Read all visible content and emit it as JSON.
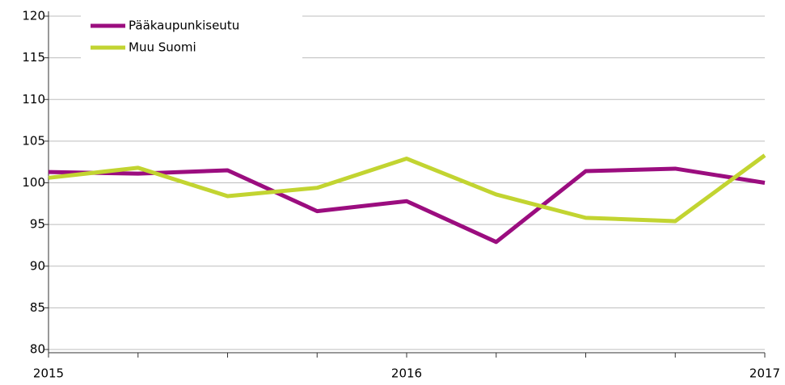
{
  "chart_data": {
    "type": "line",
    "categories": [
      "2015",
      null,
      null,
      null,
      "2016",
      null,
      null,
      null,
      "2017"
    ],
    "series": [
      {
        "name": "Pääkaupunkiseutu",
        "color": "#9b0d7f",
        "values": [
          101.3,
          101.1,
          101.5,
          96.6,
          97.8,
          92.9,
          101.4,
          101.7,
          100.0
        ]
      },
      {
        "name": "Muu Suomi",
        "color": "#c2d431",
        "values": [
          100.6,
          101.8,
          98.4,
          99.4,
          102.9,
          98.6,
          95.8,
          95.4,
          103.3
        ]
      }
    ],
    "ylim": [
      80,
      120
    ],
    "yticks": [
      80,
      85,
      90,
      95,
      100,
      105,
      110,
      115,
      120
    ],
    "grid": true,
    "legend": "upper left"
  }
}
